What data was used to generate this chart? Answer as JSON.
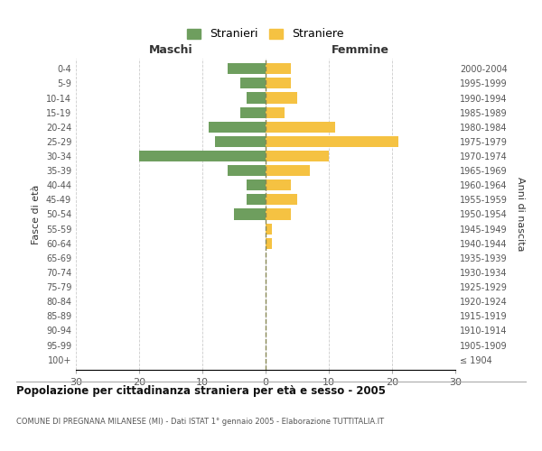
{
  "age_groups": [
    "100+",
    "95-99",
    "90-94",
    "85-89",
    "80-84",
    "75-79",
    "70-74",
    "65-69",
    "60-64",
    "55-59",
    "50-54",
    "45-49",
    "40-44",
    "35-39",
    "30-34",
    "25-29",
    "20-24",
    "15-19",
    "10-14",
    "5-9",
    "0-4"
  ],
  "birth_years": [
    "≤ 1904",
    "1905-1909",
    "1910-1914",
    "1915-1919",
    "1920-1924",
    "1925-1929",
    "1930-1934",
    "1935-1939",
    "1940-1944",
    "1945-1949",
    "1950-1954",
    "1955-1959",
    "1960-1964",
    "1965-1969",
    "1970-1974",
    "1975-1979",
    "1980-1984",
    "1985-1989",
    "1990-1994",
    "1995-1999",
    "2000-2004"
  ],
  "maschi": [
    0,
    0,
    0,
    0,
    0,
    0,
    0,
    0,
    0,
    0,
    5,
    3,
    3,
    6,
    20,
    8,
    9,
    4,
    3,
    4,
    6
  ],
  "femmine": [
    0,
    0,
    0,
    0,
    0,
    0,
    0,
    0,
    1,
    1,
    4,
    5,
    4,
    7,
    10,
    21,
    11,
    3,
    5,
    4,
    4
  ],
  "male_color": "#6e9e5e",
  "female_color": "#f5c242",
  "background_color": "#ffffff",
  "grid_color": "#cccccc",
  "title": "Popolazione per cittadinanza straniera per età e sesso - 2005",
  "subtitle": "COMUNE DI PREGNANA MILANESE (MI) - Dati ISTAT 1° gennaio 2005 - Elaborazione TUTTITALIA.IT",
  "ylabel_left": "Fasce di età",
  "ylabel_right": "Anni di nascita",
  "xlabel_maschi": "Maschi",
  "xlabel_femmine": "Femmine",
  "legend_maschi": "Stranieri",
  "legend_femmine": "Straniere",
  "xlim": 30,
  "bar_height": 0.75
}
